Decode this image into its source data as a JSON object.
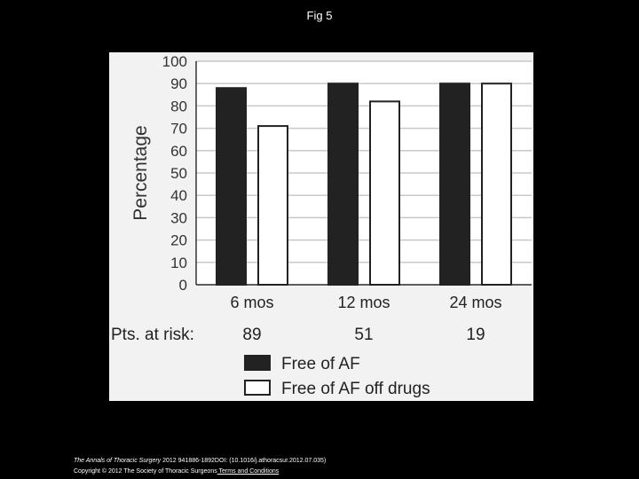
{
  "slide": {
    "title": "Fig 5"
  },
  "chart_data": {
    "type": "bar",
    "categories": [
      "6 mos",
      "12 mos",
      "24 mos"
    ],
    "series": [
      {
        "name": "Free of AF",
        "values": [
          88,
          90,
          90
        ],
        "color": "#222222"
      },
      {
        "name": "Free of AF off drugs",
        "values": [
          71,
          82,
          90
        ],
        "color": "#ffffff"
      }
    ],
    "ylabel": "Percentage",
    "ylim": [
      0,
      100
    ],
    "yticks": [
      "0",
      "10",
      "20",
      "30",
      "40",
      "50",
      "60",
      "70",
      "80",
      "90",
      "100"
    ],
    "grid": true,
    "legend_position": "bottom",
    "risk_label": "Pts. at risk:",
    "risk_values": [
      "89",
      "51",
      "19"
    ]
  },
  "footer": {
    "journal": "The Annals of Thoracic Surgery",
    "citation": " 2012 941886-1892DOI: (10.1016/j.athoracsur.2012.07.035)",
    "copyright": "Copyright © 2012 The Society of Thoracic Surgeons",
    "link": " Terms and Conditions"
  }
}
